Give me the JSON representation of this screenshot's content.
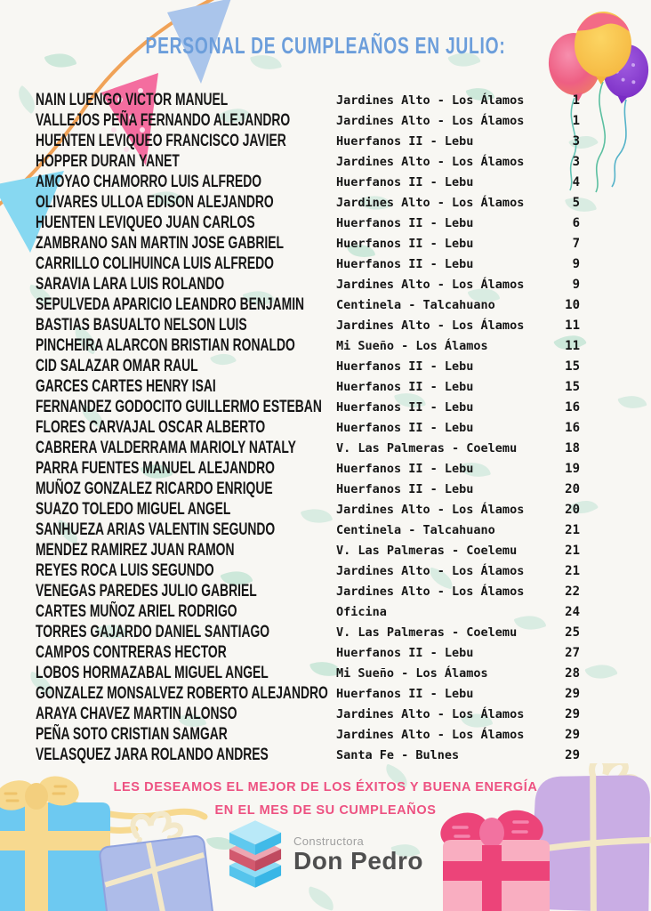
{
  "page": {
    "title": "PERSONAL DE CUMPLEAÑOS EN JULIO:",
    "wish_line1": "LES DESEAMOS EL MEJOR DE LOS ÉXITOS Y BUENA ENERGÍA",
    "wish_line2": "EN EL MES DE SU CUMPLEAÑOS",
    "colors": {
      "background": "#f8f7f3",
      "title_blue": "#6c9edb",
      "wish_pink": "#ed5181",
      "text_black": "#161616",
      "leaf_mint": "#d9ece2"
    }
  },
  "logo": {
    "company_type": "Constructora",
    "company_name": "Don Pedro"
  },
  "list": {
    "month": "JULIO",
    "columns": [
      "name",
      "location",
      "day"
    ],
    "rows": [
      {
        "name": "NAIN LUENGO VICTOR MANUEL",
        "location": "Jardines Alto - Los Álamos",
        "day": "1"
      },
      {
        "name": "VALLEJOS PEÑA FERNANDO ALEJANDRO",
        "location": "Jardines Alto - Los Álamos",
        "day": "1"
      },
      {
        "name": "HUENTEN LEVIQUEO FRANCISCO JAVIER",
        "location": "Huerfanos II - Lebu",
        "day": "3"
      },
      {
        "name": "HOPPER DURAN YANET",
        "location": "Jardines Alto - Los Álamos",
        "day": "3"
      },
      {
        "name": "AMOYAO CHAMORRO LUIS ALFREDO",
        "location": "Huerfanos II - Lebu",
        "day": "4"
      },
      {
        "name": "OLIVARES ULLOA EDISON ALEJANDRO",
        "location": "Jardines Alto - Los Álamos",
        "day": "5"
      },
      {
        "name": "HUENTEN LEVIQUEO JUAN CARLOS",
        "location": "Huerfanos II - Lebu",
        "day": "6"
      },
      {
        "name": "ZAMBRANO SAN MARTIN JOSE GABRIEL",
        "location": "Huerfanos II - Lebu",
        "day": "7"
      },
      {
        "name": "CARRILLO COLIHUINCA LUIS ALFREDO",
        "location": "Huerfanos II - Lebu",
        "day": "9"
      },
      {
        "name": "SARAVIA LARA LUIS ROLANDO",
        "location": "Jardines Alto - Los Álamos",
        "day": "9"
      },
      {
        "name": "SEPULVEDA APARICIO LEANDRO BENJAMIN",
        "location": "Centinela - Talcahuano",
        "day": "10"
      },
      {
        "name": "BASTIAS BASUALTO NELSON LUIS",
        "location": "Jardines Alto - Los Álamos",
        "day": "11"
      },
      {
        "name": "PINCHEIRA ALARCON BRISTIAN RONALDO",
        "location": "Mi Sueño - Los Álamos",
        "day": "11"
      },
      {
        "name": "CID SALAZAR OMAR RAUL",
        "location": "Huerfanos II - Lebu",
        "day": "15"
      },
      {
        "name": "GARCES CARTES HENRY ISAI",
        "location": "Huerfanos II - Lebu",
        "day": "15"
      },
      {
        "name": "FERNANDEZ GODOCITO GUILLERMO ESTEBAN",
        "location": "Huerfanos II - Lebu",
        "day": "16"
      },
      {
        "name": "FLORES CARVAJAL OSCAR ALBERTO",
        "location": "Huerfanos II - Lebu",
        "day": "16"
      },
      {
        "name": "CABRERA VALDERRAMA MARIOLY NATALY",
        "location": "V. Las Palmeras - Coelemu",
        "day": "18"
      },
      {
        "name": "PARRA FUENTES MANUEL ALEJANDRO",
        "location": "Huerfanos II - Lebu",
        "day": "19"
      },
      {
        "name": "MUÑOZ GONZALEZ RICARDO ENRIQUE",
        "location": "Huerfanos II - Lebu",
        "day": "20"
      },
      {
        "name": "SUAZO TOLEDO MIGUEL ANGEL",
        "location": "Jardines Alto - Los Álamos",
        "day": "20"
      },
      {
        "name": "SANHUEZA ARIAS VALENTIN SEGUNDO",
        "location": "Centinela - Talcahuano",
        "day": "21"
      },
      {
        "name": "MENDEZ RAMIREZ JUAN RAMON",
        "location": "V. Las Palmeras - Coelemu",
        "day": "21"
      },
      {
        "name": "REYES ROCA LUIS SEGUNDO",
        "location": "Jardines Alto - Los Álamos",
        "day": "21"
      },
      {
        "name": "VENEGAS PAREDES JULIO GABRIEL",
        "location": "Jardines Alto - Los Álamos",
        "day": "22"
      },
      {
        "name": "CARTES MUÑOZ ARIEL RODRIGO",
        "location": "Oficina",
        "day": "24"
      },
      {
        "name": "TORRES GAJARDO DANIEL SANTIAGO",
        "location": "V. Las Palmeras - Coelemu",
        "day": "25"
      },
      {
        "name": "CAMPOS CONTRERAS HECTOR",
        "location": "Huerfanos II - Lebu",
        "day": "27"
      },
      {
        "name": "LOBOS HORMAZABAL MIGUEL ANGEL",
        "location": "Mi Sueño - Los Álamos",
        "day": "28"
      },
      {
        "name": "GONZALEZ MONSALVEZ ROBERTO ALEJANDRO",
        "location": "Huerfanos II - Lebu",
        "day": "29"
      },
      {
        "name": "ARAYA CHAVEZ MARTIN ALONSO",
        "location": "Jardines Alto - Los Álamos",
        "day": "29"
      },
      {
        "name": "PEÑA SOTO CRISTIAN SAMGAR",
        "location": "Jardines Alto - Los Álamos",
        "day": "29"
      },
      {
        "name": "VELASQUEZ JARA ROLANDO ANDRES",
        "location": "Santa Fe - Bulnes",
        "day": "29"
      }
    ]
  },
  "decorations": [
    "bunting-flags-icon",
    "balloons-icon",
    "gift-boxes-left-icon",
    "gift-boxes-right-icon",
    "leaf-pattern"
  ]
}
